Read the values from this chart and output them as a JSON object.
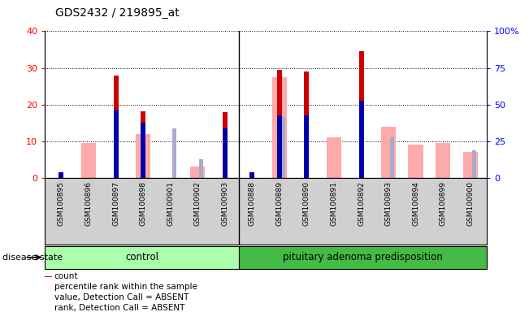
{
  "title": "GDS2432 / 219895_at",
  "samples": [
    "GSM100895",
    "GSM100896",
    "GSM100897",
    "GSM100898",
    "GSM100901",
    "GSM100902",
    "GSM100903",
    "GSM100888",
    "GSM100889",
    "GSM100890",
    "GSM100891",
    "GSM100892",
    "GSM100893",
    "GSM100894",
    "GSM100899",
    "GSM100900"
  ],
  "count": [
    0,
    0,
    27.8,
    18.2,
    0,
    0,
    18.0,
    0,
    29.5,
    29.0,
    0,
    34.5,
    0,
    0,
    0,
    0
  ],
  "percentile_rank": [
    1.5,
    0,
    18.5,
    15.0,
    0,
    0,
    13.5,
    1.5,
    17.0,
    17.0,
    0,
    21.0,
    0,
    0,
    0,
    0
  ],
  "value_absent": [
    0,
    9.5,
    0,
    12.0,
    0,
    3.0,
    0,
    0,
    27.5,
    0,
    11.0,
    0,
    14.0,
    9.0,
    9.5,
    7.0
  ],
  "rank_absent": [
    0,
    0,
    0,
    0,
    13.5,
    5.0,
    0,
    0,
    16.5,
    0,
    0,
    0,
    11.0,
    0,
    0,
    7.5
  ],
  "n_control": 7,
  "n_pituitary": 9,
  "left_ylim": [
    0,
    40
  ],
  "left_yticks": [
    0,
    10,
    20,
    30,
    40
  ],
  "right_yticklabels": [
    "0",
    "25",
    "50",
    "75",
    "100%"
  ],
  "color_count": "#cc0000",
  "color_percentile": "#0000aa",
  "color_value_absent": "#ffaaaa",
  "color_rank_absent": "#aaaacc",
  "color_gray_bg": "#d0d0d0",
  "color_control_green": "#aaffaa",
  "color_pituitary_green": "#44bb44"
}
